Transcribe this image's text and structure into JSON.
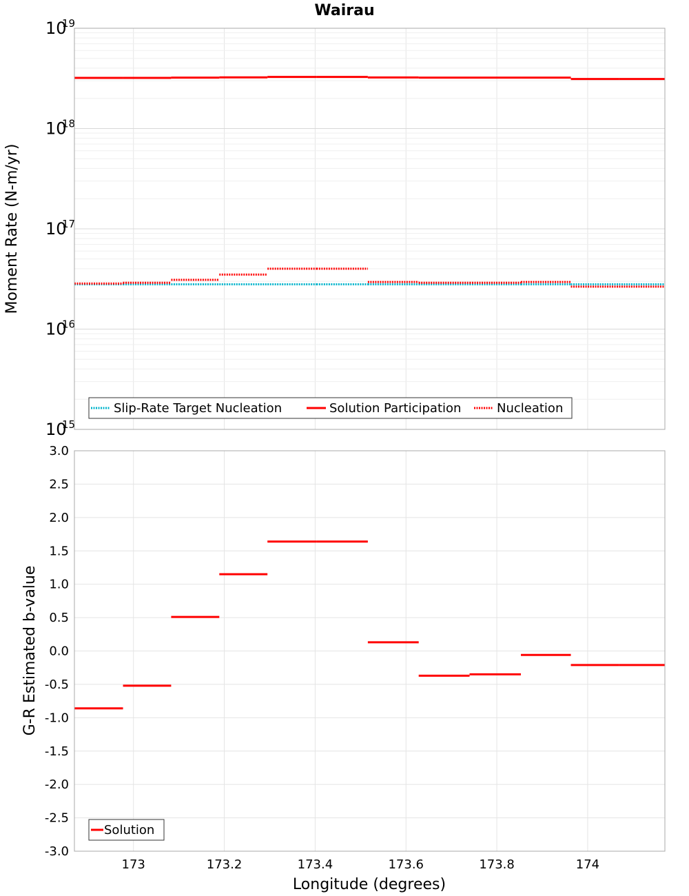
{
  "title": "Wairau",
  "colors": {
    "target": "#00b4cc",
    "solution": "#ff0000",
    "grid": "#e4e4e4",
    "frame": "#a8a8a8"
  },
  "chart_data": [
    {
      "type": "line",
      "panel": "top",
      "scale": "log",
      "title": "Wairau",
      "xlabel": "",
      "ylabel": "Moment Rate (N-m/yr)",
      "xlim": [
        172.87,
        174.17
      ],
      "ylim": [
        1000000000000000.0,
        1e+19
      ],
      "y_ticks": [
        {
          "base": "10",
          "exp": "15",
          "value": 1000000000000000.0
        },
        {
          "base": "10",
          "exp": "16",
          "value": 1e+16
        },
        {
          "base": "10",
          "exp": "17",
          "value": 1e+17
        },
        {
          "base": "10",
          "exp": "18",
          "value": 1e+18
        },
        {
          "base": "10",
          "exp": "19",
          "value": 1e+19
        }
      ],
      "x_edges": [
        172.87,
        172.977,
        173.083,
        173.189,
        173.295,
        173.403,
        173.516,
        173.628,
        173.74,
        173.853,
        173.963,
        174.069,
        174.17
      ],
      "legend": {
        "position": "bottom-left"
      },
      "series": [
        {
          "name": "Slip-Rate Target Nucleation",
          "style": "dotted",
          "color": "#00b4cc",
          "values": [
            2.8e+16,
            2.8e+16,
            2.8e+16,
            2.8e+16,
            2.8e+16,
            2.8e+16,
            2.8e+16,
            2.8e+16,
            2.8e+16,
            2.8e+16,
            2.8e+16,
            2.8e+16
          ]
        },
        {
          "name": "Solution Participation",
          "style": "solid",
          "color": "#ff0000",
          "values": [
            3.2e+18,
            3.2e+18,
            3.22e+18,
            3.24e+18,
            3.27e+18,
            3.27e+18,
            3.23e+18,
            3.22e+18,
            3.22e+18,
            3.22e+18,
            3.12e+18,
            3.12e+18
          ]
        },
        {
          "name": "Nucleation",
          "style": "dotted",
          "color": "#ff0000",
          "values": [
            2.85e+16,
            2.9e+16,
            3.1e+16,
            3.5e+16,
            4e+16,
            4e+16,
            2.95e+16,
            2.9e+16,
            2.9e+16,
            2.95e+16,
            2.65e+16,
            2.65e+16
          ]
        }
      ]
    },
    {
      "type": "line",
      "panel": "bottom",
      "title": "",
      "xlabel": "Longitude (degrees)",
      "ylabel": "G-R Estimated b-value",
      "xlim": [
        172.87,
        174.17
      ],
      "ylim": [
        -3.0,
        3.0
      ],
      "y_ticks": [
        "3.0",
        "2.5",
        "2.0",
        "1.5",
        "1.0",
        "0.5",
        "0.0",
        "-0.5",
        "-1.0",
        "-1.5",
        "-2.0",
        "-2.5",
        "-3.0"
      ],
      "x_ticks": [
        "173",
        "173.2",
        "173.4",
        "173.6",
        "173.8",
        "174"
      ],
      "x_edges": [
        172.87,
        172.977,
        173.083,
        173.189,
        173.295,
        173.403,
        173.516,
        173.628,
        173.74,
        173.853,
        173.963,
        174.069,
        174.17
      ],
      "legend": {
        "position": "bottom-left"
      },
      "series": [
        {
          "name": "Solution",
          "style": "solid",
          "color": "#ff0000",
          "values": [
            -0.86,
            -0.52,
            0.51,
            1.15,
            1.64,
            1.64,
            0.13,
            -0.37,
            -0.35,
            -0.06,
            -0.21,
            -0.21
          ]
        }
      ]
    }
  ]
}
